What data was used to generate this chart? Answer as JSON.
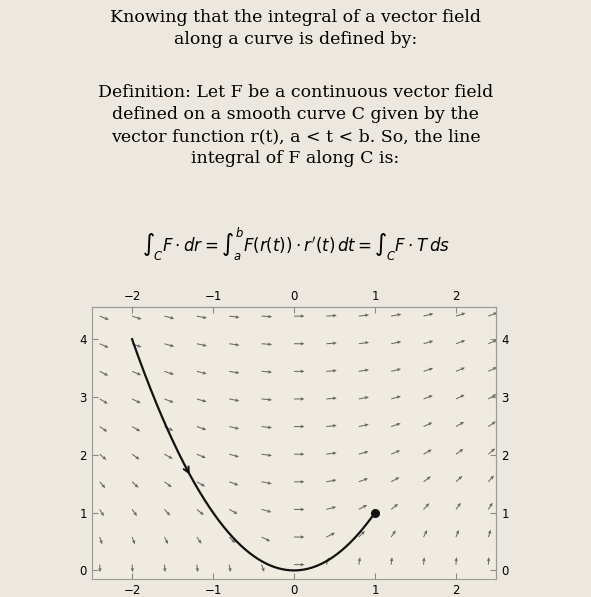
{
  "bg_color": "#ede8df",
  "plot_bg_color": "#f0ebe0",
  "text1": "Knowing that the integral of a vector field\nalong a curve is defined by:",
  "text2": "Definition: Let F be a continuous vector field\ndefined on a smooth curve C given by the\nvector function r(t), a < t < b. So, the line\nintegral of F along C is:",
  "formula": "$\\int_C \\mathit{F} \\cdot d\\mathit{r} = \\int_a^b F(r(t)) \\cdot r'(t)\\, dt = \\int_C F \\cdot T\\, ds$",
  "text_fontsize": 12.5,
  "formula_fontsize": 12.0,
  "xlim": [
    -2.5,
    2.5
  ],
  "ylim": [
    -0.15,
    4.55
  ],
  "xticks": [
    -2,
    -1,
    0,
    1,
    2
  ],
  "yticks": [
    0,
    1,
    2,
    3,
    4
  ],
  "quiver_color": "#666666",
  "curve_color": "#111111",
  "dot_color": "#111111",
  "nx": 13,
  "ny": 10,
  "arrow_scale": 0.13
}
